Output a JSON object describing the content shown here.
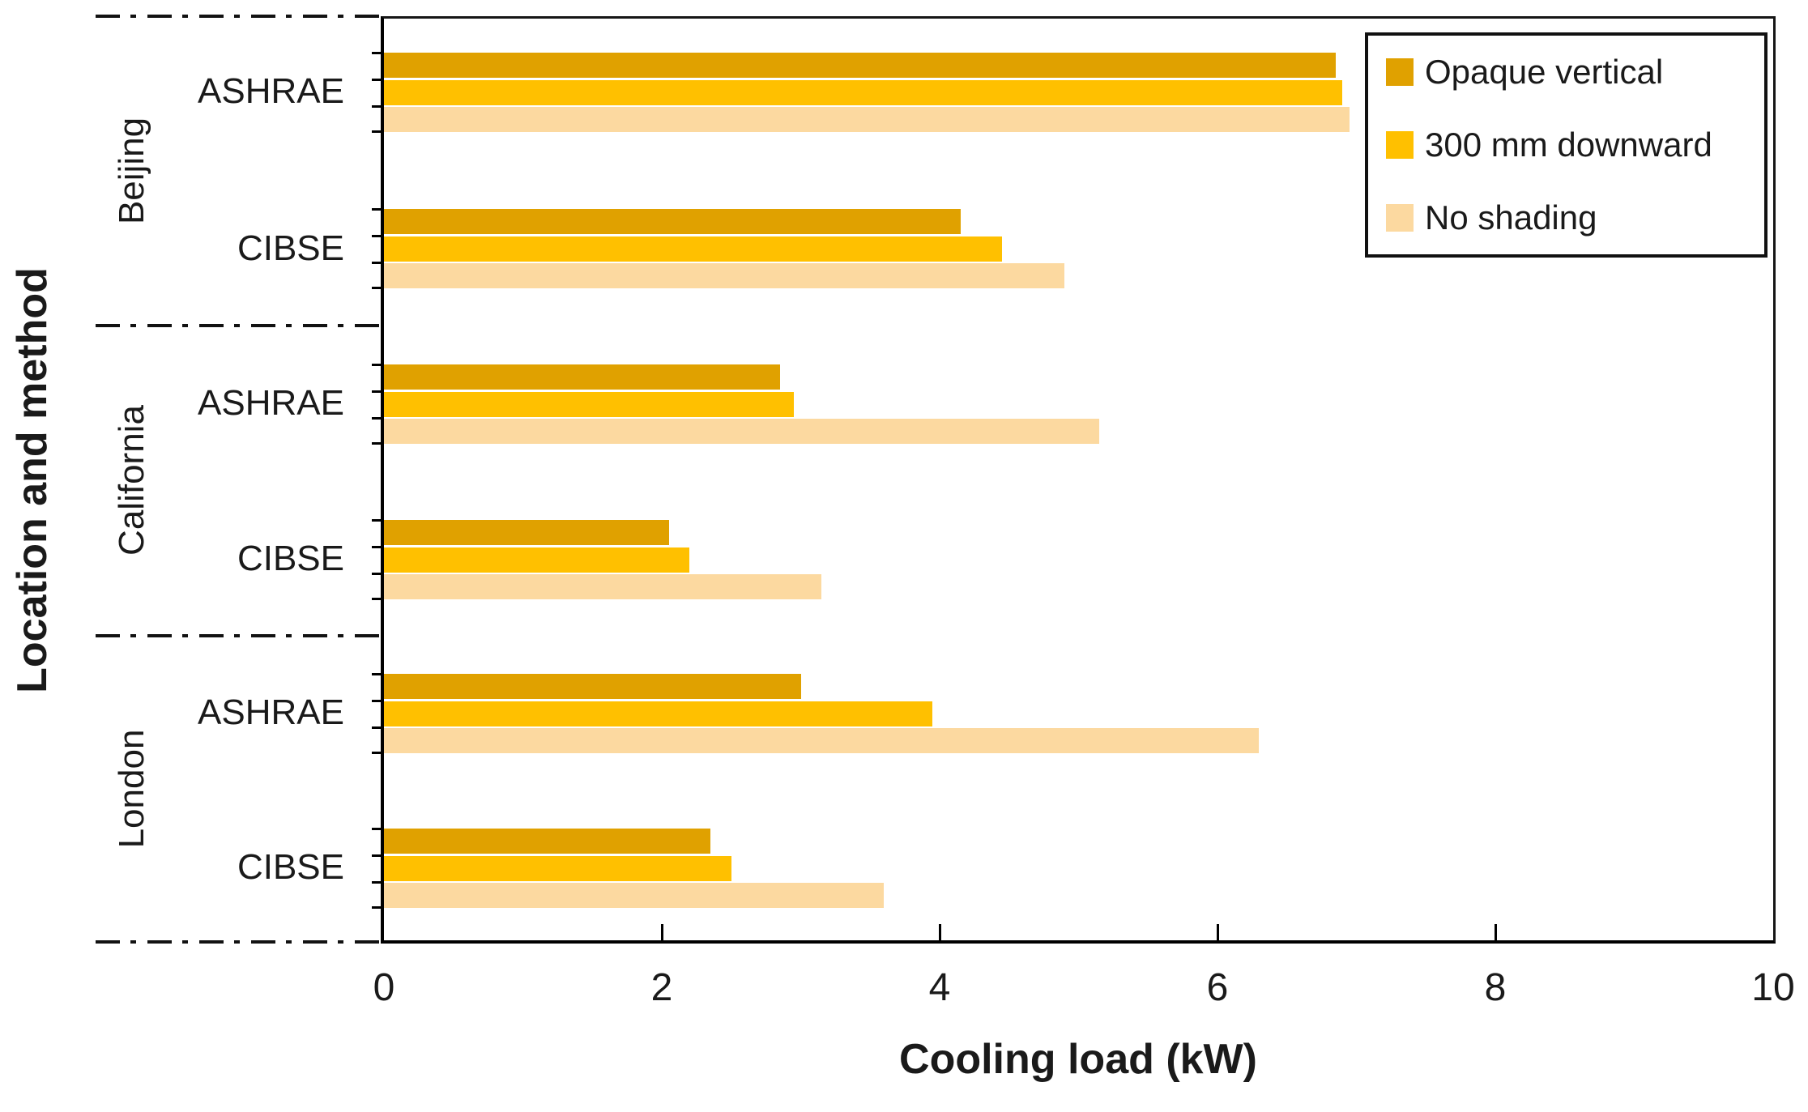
{
  "figure_title": "",
  "axes": {
    "x_title": "Cooling load (kW)",
    "y_title": "Location and method"
  },
  "chart_data": {
    "type": "bar",
    "orientation": "horizontal",
    "title": "",
    "xlabel": "Cooling load (kW)",
    "ylabel": "Location and method",
    "xlim": [
      0,
      10
    ],
    "x_ticks": [
      0,
      2,
      4,
      6,
      8,
      10
    ],
    "grid": false,
    "legend_position": "top-right",
    "locations": [
      "Beijing",
      "California",
      "London"
    ],
    "categories": [
      "Beijing ASHRAE",
      "Beijing CIBSE",
      "California ASHRAE",
      "California CIBSE",
      "London ASHRAE",
      "London CIBSE"
    ],
    "category_methods": [
      "ASHRAE",
      "CIBSE",
      "ASHRAE",
      "CIBSE",
      "ASHRAE",
      "CIBSE"
    ],
    "series": [
      {
        "name": "Opaque vertical",
        "color": "#E0A100",
        "values": [
          6.85,
          4.15,
          2.85,
          2.05,
          3.0,
          2.35
        ]
      },
      {
        "name": "300 mm downward",
        "color": "#FFC000",
        "values": [
          6.9,
          4.45,
          2.95,
          2.2,
          3.95,
          2.5
        ]
      },
      {
        "name": "No shading",
        "color": "#FCD9A0",
        "values": [
          6.95,
          4.9,
          5.15,
          3.15,
          6.3,
          3.6
        ]
      }
    ]
  }
}
